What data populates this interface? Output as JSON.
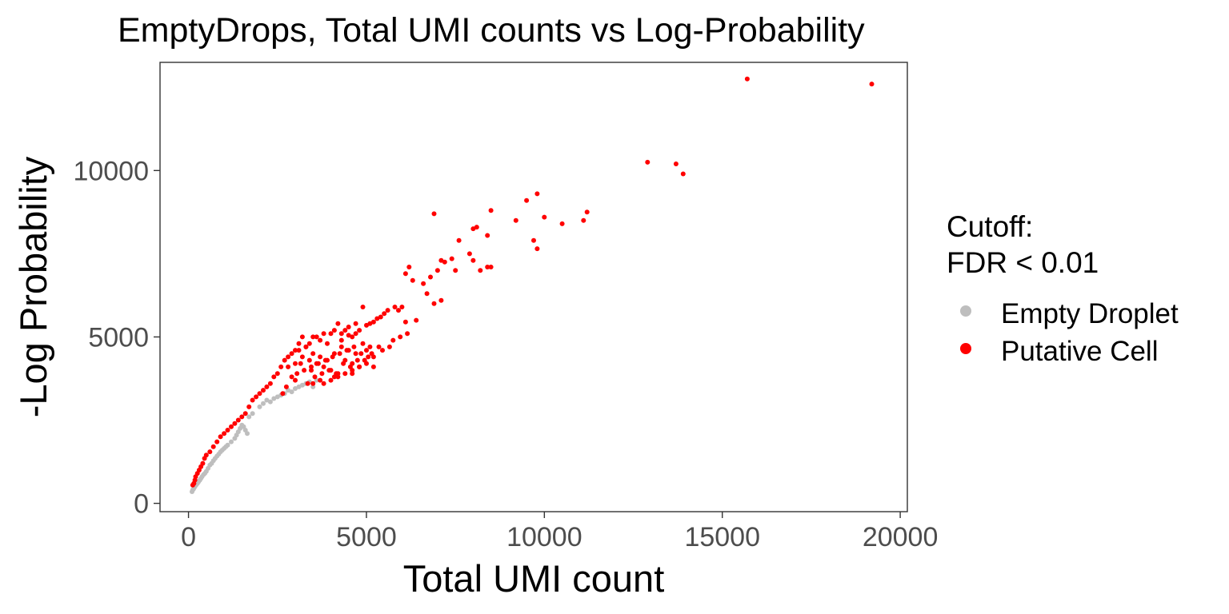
{
  "chart_data": {
    "type": "scatter",
    "title": "EmptyDrops, Total UMI counts vs Log-Probability",
    "xlabel": "Total UMI count",
    "ylabel": "-Log Probability",
    "xlim": [
      -800,
      20200
    ],
    "ylim": [
      -250,
      13250
    ],
    "xticks": [
      0,
      5000,
      10000,
      15000,
      20000
    ],
    "xtick_labels": [
      "0",
      "5000",
      "10000",
      "15000",
      "20000"
    ],
    "yticks": [
      0,
      5000,
      10000
    ],
    "ytick_labels": [
      "0",
      "5000",
      "10000"
    ],
    "grid": false,
    "legend": {
      "placement": "right",
      "title_line1": "Cutoff:",
      "title_line2": "FDR < 0.01",
      "entries": [
        {
          "label": "Empty Droplet",
          "color": "#bebebe"
        },
        {
          "label": "Putative Cell",
          "color": "#ff0000"
        }
      ]
    },
    "series": [
      {
        "name": "Empty Droplet",
        "color": "#bebebe",
        "x": [
          100,
          120,
          140,
          160,
          180,
          200,
          220,
          250,
          280,
          300,
          320,
          350,
          380,
          420,
          460,
          500,
          550,
          600,
          650,
          700,
          750,
          800,
          850,
          900,
          950,
          1000,
          1050,
          1100,
          1200,
          1300,
          1350,
          1400,
          1450,
          1500,
          1550,
          1600,
          1650,
          1700,
          1800,
          2000,
          2100,
          2200,
          2300,
          2400,
          2500,
          2600,
          2700,
          2800,
          2900,
          3000,
          3100,
          3200,
          3300,
          3400,
          3500,
          3600
        ],
        "y": [
          350,
          400,
          430,
          470,
          500,
          540,
          560,
          600,
          640,
          680,
          700,
          750,
          800,
          860,
          900,
          960,
          1050,
          1150,
          1200,
          1280,
          1350,
          1420,
          1480,
          1550,
          1600,
          1650,
          1700,
          1750,
          1850,
          1950,
          2050,
          2150,
          2250,
          2350,
          2300,
          2200,
          2100,
          2600,
          2700,
          2900,
          3000,
          3100,
          3050,
          3150,
          3200,
          3250,
          3300,
          3400,
          3350,
          3450,
          3500,
          3550,
          3600,
          3650,
          3500,
          3700
        ]
      },
      {
        "name": "Putative Cell",
        "color": "#ff0000",
        "x": [
          15700,
          19200,
          12900,
          13700,
          13900,
          9800,
          9500,
          10000,
          9200,
          11200,
          11100,
          10500,
          9700,
          9800,
          8500,
          8100,
          8000,
          8400,
          8500,
          6900,
          7600,
          7400,
          7100,
          7200,
          7000,
          7900,
          8000,
          8200,
          8400,
          7500,
          6800,
          6600,
          6200,
          6100,
          6300,
          6000,
          6900,
          7100,
          6700,
          6400,
          6100,
          5900,
          5800,
          5600,
          5500,
          5400,
          5300,
          5200,
          5100,
          5000,
          4900,
          4800,
          4700,
          4600,
          4500,
          4400,
          4300,
          4200,
          4100,
          4000,
          3900,
          3800,
          3700,
          3600,
          3500,
          3400,
          3300,
          3200,
          3100,
          3000,
          2900,
          2800,
          2700,
          2600,
          2500,
          2400,
          2300,
          2200,
          2100,
          2000,
          1900,
          1800,
          1700,
          1600,
          1500,
          1400,
          1300,
          1200,
          1100,
          1000,
          900,
          800,
          700,
          600,
          500,
          450,
          400,
          350,
          300,
          250,
          200,
          180,
          150,
          120,
          3000,
          3200,
          3400,
          3600,
          3800,
          4000,
          4200,
          4400,
          4600,
          4800,
          5000,
          3100,
          3300,
          3500,
          3700,
          3900,
          4100,
          4300,
          4500,
          4700,
          4900,
          5100,
          3050,
          3250,
          3450,
          3650,
          3850,
          4050,
          4250,
          4450,
          4650,
          4850,
          5050,
          2800,
          2900,
          3000,
          3500,
          3700,
          4100,
          4600,
          5200,
          2650,
          2750,
          3350,
          3550,
          3950,
          4350,
          4750,
          5150,
          5450,
          5650,
          5950,
          3150,
          3450,
          3750,
          4150,
          4550,
          4950,
          5350,
          5750,
          6150,
          3800,
          4000,
          4200,
          4400,
          4600,
          4800,
          5000,
          5200,
          4300,
          4500,
          4700
        ],
        "y": [
          12750,
          12600,
          10250,
          10200,
          9900,
          9300,
          9100,
          8600,
          8500,
          8750,
          8500,
          8400,
          7900,
          7650,
          8800,
          8300,
          8250,
          8050,
          7100,
          8700,
          7900,
          7350,
          7300,
          7250,
          7000,
          7500,
          7300,
          7000,
          7100,
          7000,
          6800,
          6600,
          7100,
          6900,
          6700,
          5900,
          6000,
          6100,
          6300,
          5500,
          5450,
          5800,
          5900,
          5800,
          5700,
          5600,
          5550,
          5450,
          5400,
          5350,
          5900,
          5200,
          5100,
          5000,
          5050,
          5200,
          4900,
          5400,
          5200,
          5100,
          4800,
          5100,
          4900,
          5000,
          5000,
          4800,
          4700,
          5000,
          4600,
          4200,
          4500,
          4400,
          4300,
          4100,
          3900,
          3800,
          3600,
          3500,
          3400,
          3300,
          3200,
          3100,
          2900,
          2700,
          2600,
          2500,
          2400,
          2300,
          2200,
          2100,
          2000,
          1850,
          1700,
          1550,
          1450,
          1350,
          1200,
          1100,
          1000,
          900,
          800,
          700,
          600,
          550,
          4600,
          4400,
          4300,
          4200,
          4100,
          4000,
          3900,
          4300,
          4200,
          4100,
          4600,
          4800,
          4700,
          4500,
          4400,
          4300,
          4500,
          4700,
          4600,
          4500,
          4800,
          4700,
          3900,
          4000,
          4100,
          4200,
          4300,
          4400,
          4500,
          4600,
          4700,
          4500,
          4400,
          4100,
          3800,
          3700,
          3600,
          3700,
          3800,
          3900,
          4100,
          3300,
          3500,
          3600,
          3800,
          4000,
          4200,
          4300,
          4500,
          4600,
          4700,
          5000,
          4200,
          4000,
          3900,
          3900,
          4100,
          4300,
          4700,
          4900,
          5100,
          3600,
          3700,
          3800,
          3900,
          4000,
          4100,
          4200,
          4400,
          5100,
          5300,
          5400
        ]
      }
    ]
  }
}
